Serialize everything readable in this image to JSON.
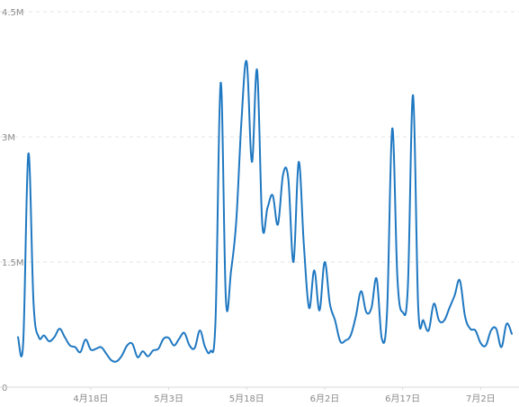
{
  "chart_data": {
    "type": "line",
    "y_ticks": [
      "4.5M",
      "3M",
      "1.5M",
      "0"
    ],
    "x_ticks": [
      "4月18日",
      "5月3日",
      "5月18日",
      "6月2日",
      "6月17日",
      "7月2日"
    ],
    "y_tick_values": [
      4500000,
      3000000,
      1500000,
      0
    ],
    "x_tick_indices": [
      14,
      29,
      44,
      59,
      74,
      89
    ],
    "ylim": [
      0,
      4500000
    ],
    "grid": true,
    "legend": "none",
    "series": [
      {
        "values": [
          600000,
          530000,
          2800000,
          1000000,
          600000,
          620000,
          550000,
          600000,
          700000,
          600000,
          500000,
          480000,
          420000,
          570000,
          450000,
          460000,
          480000,
          400000,
          320000,
          310000,
          380000,
          500000,
          520000,
          360000,
          430000,
          370000,
          440000,
          460000,
          580000,
          590000,
          500000,
          580000,
          650000,
          500000,
          470000,
          680000,
          480000,
          430000,
          800000,
          3650000,
          1050000,
          1400000,
          2000000,
          3200000,
          3900000,
          2700000,
          3800000,
          1950000,
          2150000,
          2300000,
          1950000,
          2550000,
          2500000,
          1500000,
          2700000,
          1700000,
          950000,
          1400000,
          920000,
          1500000,
          1000000,
          800000,
          550000,
          560000,
          620000,
          850000,
          1150000,
          900000,
          950000,
          1300000,
          580000,
          900000,
          3100000,
          1300000,
          900000,
          1200000,
          3500000,
          950000,
          800000,
          680000,
          1000000,
          800000,
          800000,
          950000,
          1100000,
          1280000,
          850000,
          700000,
          680000,
          530000,
          500000,
          680000,
          700000,
          480000,
          760000,
          640000
        ],
        "color": "#1f78c1"
      }
    ]
  }
}
